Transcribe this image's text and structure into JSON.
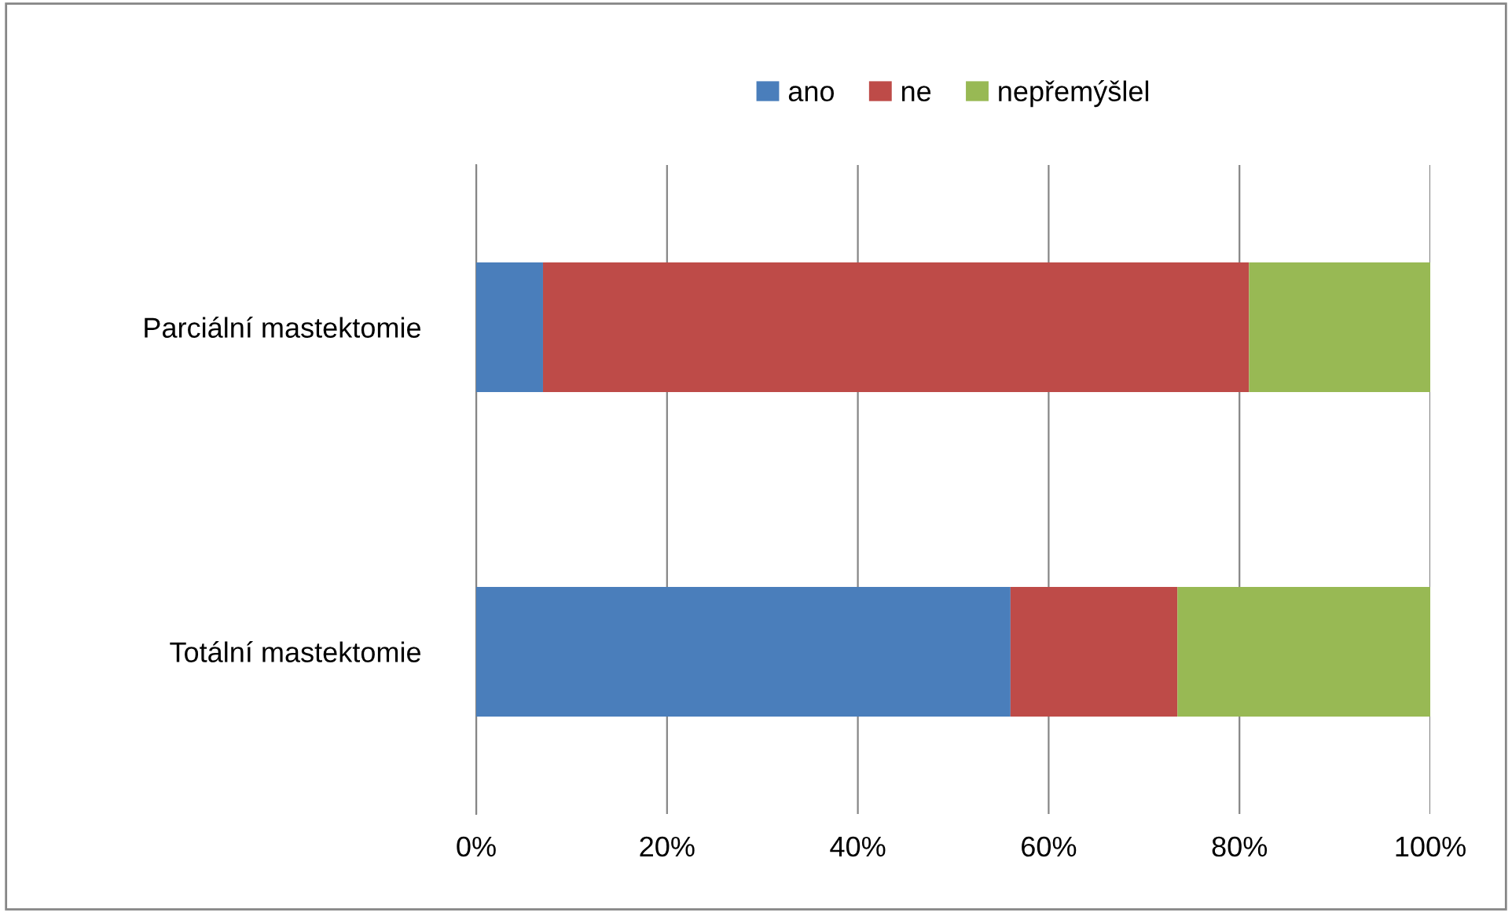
{
  "chart_data": {
    "type": "bar",
    "orientation": "horizontal",
    "stacked": true,
    "categories": [
      "Parciální mastektomie",
      "Totální mastektomie"
    ],
    "series": [
      {
        "name": "ano",
        "color": "#4a7ebb",
        "values": [
          7,
          56
        ]
      },
      {
        "name": "ne",
        "color": "#be4b48",
        "values": [
          74,
          17.5
        ]
      },
      {
        "name": "nepřemýšlel",
        "color": "#98b954",
        "values": [
          19,
          26.5
        ]
      }
    ],
    "xlim": [
      0,
      100
    ],
    "xticks": [
      {
        "value": 0,
        "label": "0%"
      },
      {
        "value": 20,
        "label": "20%"
      },
      {
        "value": 40,
        "label": "40%"
      },
      {
        "value": 60,
        "label": "60%"
      },
      {
        "value": 80,
        "label": "80%"
      },
      {
        "value": 100,
        "label": "100%"
      }
    ],
    "grid": "x",
    "legend": "top"
  }
}
